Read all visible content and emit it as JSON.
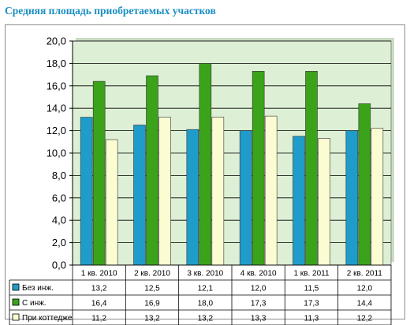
{
  "title": "Средняя площадь приобретаемых участков",
  "chart_data": {
    "type": "bar",
    "categories": [
      "1 кв. 2010",
      "2 кв. 2010",
      "3 кв. 2010",
      "4 кв. 2010",
      "1 кв. 2011",
      "2 кв. 2011"
    ],
    "series": [
      {
        "name": "Без инж.",
        "color": "#1f9cc9",
        "values": [
          13.2,
          12.5,
          12.1,
          12.0,
          11.5,
          12.0
        ],
        "labels": [
          "13,2",
          "12,5",
          "12,1",
          "12,0",
          "11,5",
          "12,0"
        ]
      },
      {
        "name": "С инж.",
        "color": "#3aa31a",
        "values": [
          16.4,
          16.9,
          18.0,
          17.3,
          17.3,
          14.4
        ],
        "labels": [
          "16,4",
          "16,9",
          "18,0",
          "17,3",
          "17,3",
          "14,4"
        ]
      },
      {
        "name": "При коттедже",
        "color": "#fbfcd2",
        "values": [
          11.2,
          13.2,
          13.2,
          13.3,
          11.3,
          12.2
        ],
        "labels": [
          "11,2",
          "13,2",
          "13,2",
          "13,3",
          "11,3",
          "12,2"
        ]
      }
    ],
    "yticks": [
      0,
      2,
      4,
      6,
      8,
      10,
      12,
      14,
      16,
      18,
      20
    ],
    "ytick_labels": [
      "0,0",
      "2,0",
      "4,0",
      "6,0",
      "8,0",
      "10,0",
      "12,0",
      "14,0",
      "16,0",
      "18,0",
      "20,0"
    ],
    "ylim": [
      0,
      20
    ],
    "grid": true,
    "plot_background": "#ddefd5",
    "legend": "data-table"
  }
}
